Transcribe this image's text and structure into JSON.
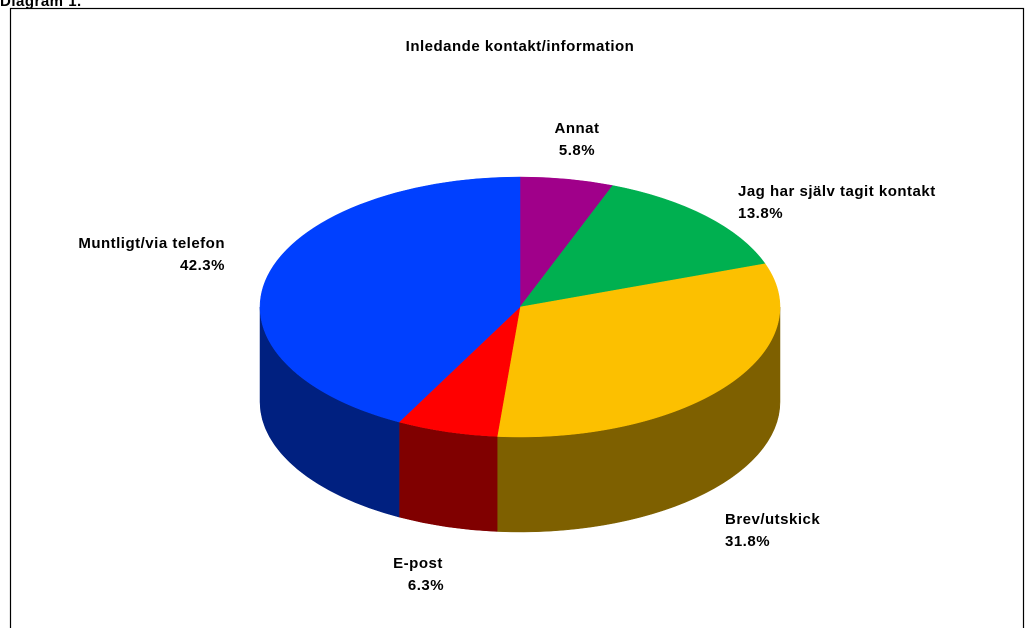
{
  "heading": "Diagram 1.",
  "chart_data": {
    "type": "pie3d",
    "title": "Inledande kontakt/information",
    "categories": [
      "Annat",
      "Jag har själv tagit kontakt",
      "Brev/utskick",
      "E-post",
      "Muntligt/via telefon"
    ],
    "values": [
      5.8,
      13.8,
      31.8,
      6.3,
      42.3
    ],
    "value_labels": [
      "5.8%",
      "13.8%",
      "31.8%",
      "6.3%",
      "42.3%"
    ],
    "colors": [
      "#a0008a",
      "#00b050",
      "#fcc000",
      "#ff0000",
      "#0040ff"
    ]
  }
}
